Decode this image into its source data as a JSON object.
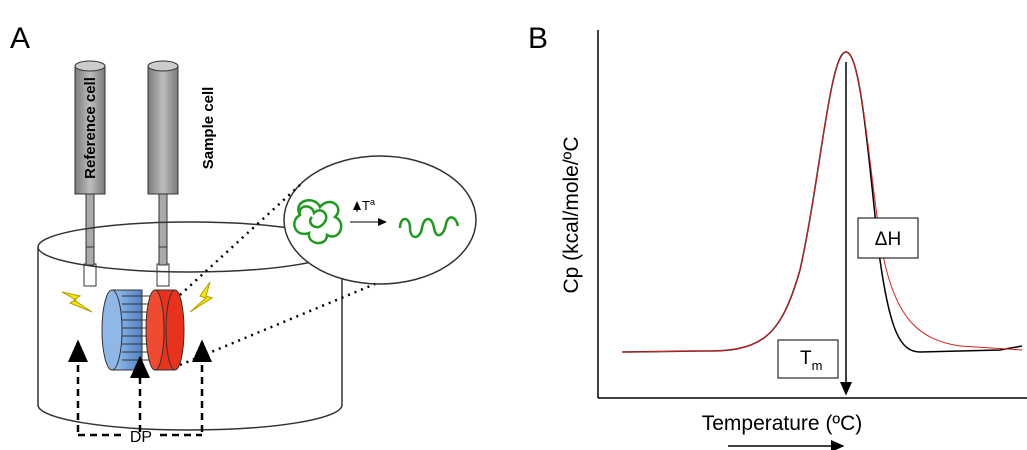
{
  "panel_a": {
    "label": "A",
    "reference_cell": "Reference cell",
    "sample_cell": "Sample cell",
    "heat_arrow": {
      "base": "T",
      "sup": "a"
    },
    "dp": "DP"
  },
  "panel_b": {
    "label": "B",
    "y_axis_label": "Cp (kcal/mole/ºC",
    "x_axis_label": "Temperature (ºC)",
    "delta_h": "ΔH",
    "tm": {
      "base": "T",
      "sub": "m"
    }
  }
}
